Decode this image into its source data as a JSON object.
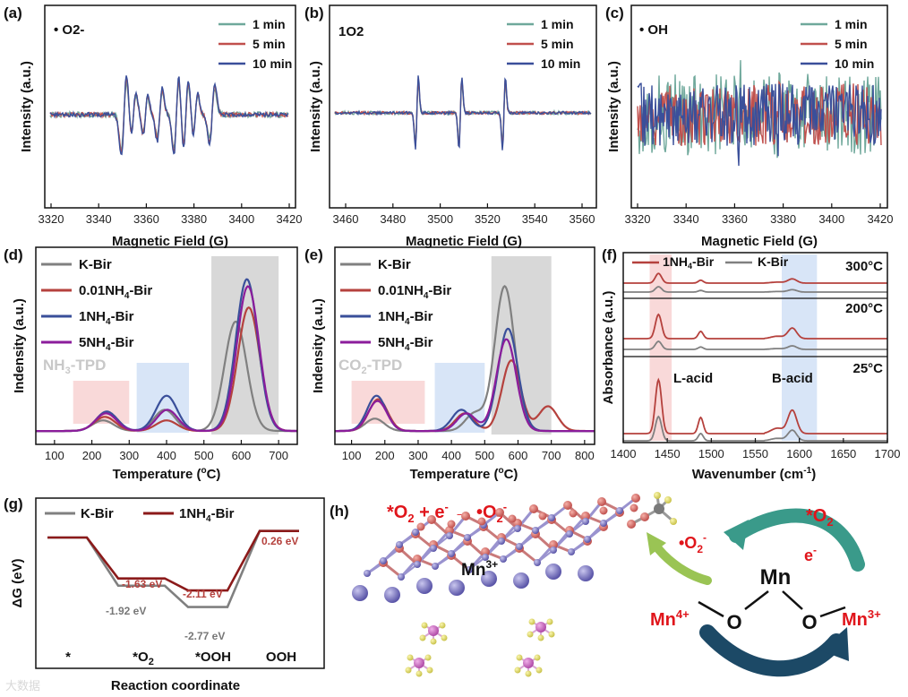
{
  "chart_data": [
    {
      "id": "a",
      "type": "line",
      "panel_label": "(a)",
      "title": "• O2-",
      "xlabel": "Magnetic Field (G)",
      "ylabel": "Intensity (a.u.)",
      "xlim": [
        3320,
        3420
      ],
      "xticks": [
        "3320",
        "3340",
        "3360",
        "3380",
        "3400",
        "3420"
      ],
      "series": [
        {
          "name": "1 min",
          "color": "#6fa89b"
        },
        {
          "name": "5 min",
          "color": "#c0504d"
        },
        {
          "name": "10 min",
          "color": "#3a4f9a"
        }
      ],
      "peaks_G": [
        3351,
        3355,
        3360,
        3366,
        3373,
        3377,
        3381,
        3388
      ]
    },
    {
      "id": "b",
      "type": "line",
      "panel_label": "(b)",
      "title": "1O2",
      "xlabel": "Magnetic Field (G)",
      "ylabel": "Intensity (a.u.)",
      "xlim": [
        3460,
        3560
      ],
      "xticks": [
        "3460",
        "3480",
        "3500",
        "3520",
        "3540",
        "3560"
      ],
      "series": [
        {
          "name": "1 min",
          "color": "#6fa89b"
        },
        {
          "name": "5 min",
          "color": "#c0504d"
        },
        {
          "name": "10 min",
          "color": "#3a4f9a"
        }
      ],
      "peaks_G": [
        3492,
        3509,
        3526
      ]
    },
    {
      "id": "c",
      "type": "line",
      "panel_label": "(c)",
      "title": "• OH",
      "xlabel": "Magnetic Field (G)",
      "ylabel": "Intensity (a.u.)",
      "xlim": [
        3320,
        3420
      ],
      "xticks": [
        "3320",
        "3340",
        "3360",
        "3380",
        "3400",
        "3420"
      ],
      "series": [
        {
          "name": "1 min",
          "color": "#6fa89b"
        },
        {
          "name": "5 min",
          "color": "#c0504d"
        },
        {
          "name": "10 min",
          "color": "#3a4f9a"
        }
      ],
      "peaks_G": [
        3362,
        3378
      ]
    },
    {
      "id": "d",
      "type": "line",
      "panel_label": "(d)",
      "title": "NH3-TPD",
      "xlabel": "Temperature (°C)",
      "ylabel": "Indensity (a.u.)",
      "xlim": [
        50,
        750
      ],
      "xticks": [
        "100",
        "200",
        "300",
        "400",
        "500",
        "600",
        "700"
      ],
      "shaded_regions": [
        [
          150,
          300
        ],
        [
          320,
          460
        ],
        [
          520,
          700
        ]
      ],
      "series": [
        {
          "name": "K-Bir",
          "color": "#808080",
          "peaks": [
            [
              230,
              0.06
            ],
            [
              395,
              0.12
            ],
            [
              585,
              0.62
            ]
          ]
        },
        {
          "name": "0.01NH4-Bir",
          "color": "#b5413d",
          "peaks": [
            [
              235,
              0.08
            ],
            [
              400,
              0.06
            ],
            [
              620,
              0.7
            ]
          ]
        },
        {
          "name": "1NH4-Bir",
          "color": "#3a4f9a",
          "peaks": [
            [
              240,
              0.11
            ],
            [
              400,
              0.2
            ],
            [
              615,
              0.86
            ]
          ]
        },
        {
          "name": "5NH4-Bir",
          "color": "#8b1d9b",
          "peaks": [
            [
              238,
              0.1
            ],
            [
              402,
              0.12
            ],
            [
              618,
              0.82
            ]
          ]
        }
      ]
    },
    {
      "id": "e",
      "type": "line",
      "panel_label": "(e)",
      "title": "CO2-TPD",
      "xlabel": "Temperature (°C)",
      "ylabel": "Indensity (a.u.)",
      "xlim": [
        50,
        830
      ],
      "xticks": [
        "100",
        "200",
        "300",
        "400",
        "500",
        "600",
        "700",
        "800"
      ],
      "shaded_regions": [
        [
          100,
          320
        ],
        [
          350,
          500
        ],
        [
          520,
          700
        ]
      ],
      "series": [
        {
          "name": "K-Bir",
          "color": "#808080",
          "peaks": [
            [
              170,
              0.07
            ],
            [
              470,
              0.1
            ],
            [
              560,
              0.82
            ]
          ]
        },
        {
          "name": "0.01NH4-Bir",
          "color": "#b5413d",
          "peaks": [
            [
              180,
              0.18
            ],
            [
              440,
              0.1
            ],
            [
              580,
              0.4
            ],
            [
              690,
              0.14
            ]
          ]
        },
        {
          "name": "1NH4-Bir",
          "color": "#3a4f9a",
          "peaks": [
            [
              175,
              0.2
            ],
            [
              430,
              0.12
            ],
            [
              570,
              0.58
            ]
          ]
        },
        {
          "name": "5NH4-Bir",
          "color": "#8b1d9b",
          "peaks": [
            [
              178,
              0.17
            ],
            [
              445,
              0.1
            ],
            [
              565,
              0.52
            ]
          ]
        }
      ]
    },
    {
      "id": "f",
      "type": "line",
      "panel_label": "(f)",
      "xlabel": "Wavenumber (cm-1)",
      "ylabel": "Absorbance (a.u.)",
      "xlim": [
        1400,
        1700
      ],
      "xticks": [
        "1400",
        "1450",
        "1500",
        "1550",
        "1600",
        "1650",
        "1700"
      ],
      "shaded_regions": [
        [
          1430,
          1455
        ],
        [
          1580,
          1620
        ]
      ],
      "series": [
        {
          "name": "1NH4-Bir",
          "color": "#b5413d"
        },
        {
          "name": "K-Bir",
          "color": "#808080"
        }
      ],
      "temperatures": [
        "300°C",
        "200°C",
        "25°C"
      ],
      "peaks_cm": [
        1440,
        1488,
        1592
      ],
      "annotations": [
        "L-acid",
        "B-acid"
      ]
    },
    {
      "id": "g",
      "type": "line",
      "panel_label": "(g)",
      "xlabel": "Reaction coordinate",
      "ylabel": "ΔG (eV)",
      "categories": [
        "*",
        "*O2",
        "*OOH",
        "OOH"
      ],
      "series": [
        {
          "name": "K-Bir",
          "color": "#808080",
          "values": [
            0,
            -1.92,
            -2.77,
            0.26
          ]
        },
        {
          "name": "1NH4-Bir",
          "color": "#8b1a1a",
          "values": [
            0,
            -1.63,
            -2.11,
            0.26
          ]
        }
      ],
      "labels": {
        "kbir_o2": "-1.92 eV",
        "kbir_ooh": "-2.77 eV",
        "nh4_o2": "-1.63 eV",
        "nh4_ooh": "-2.11 eV",
        "final": "0.26 eV"
      }
    }
  ],
  "scheme": {
    "panel_label": "(h)",
    "equation": "*O2 + e- → •O2-",
    "mn3_label": "Mn3+",
    "center": "Mn",
    "left_ion": "Mn4+",
    "right_ion": "Mn3+",
    "reactant": "*O2",
    "electron": "e-",
    "product": "•O2-",
    "bridge_atom": "O"
  },
  "watermark": "大数据"
}
